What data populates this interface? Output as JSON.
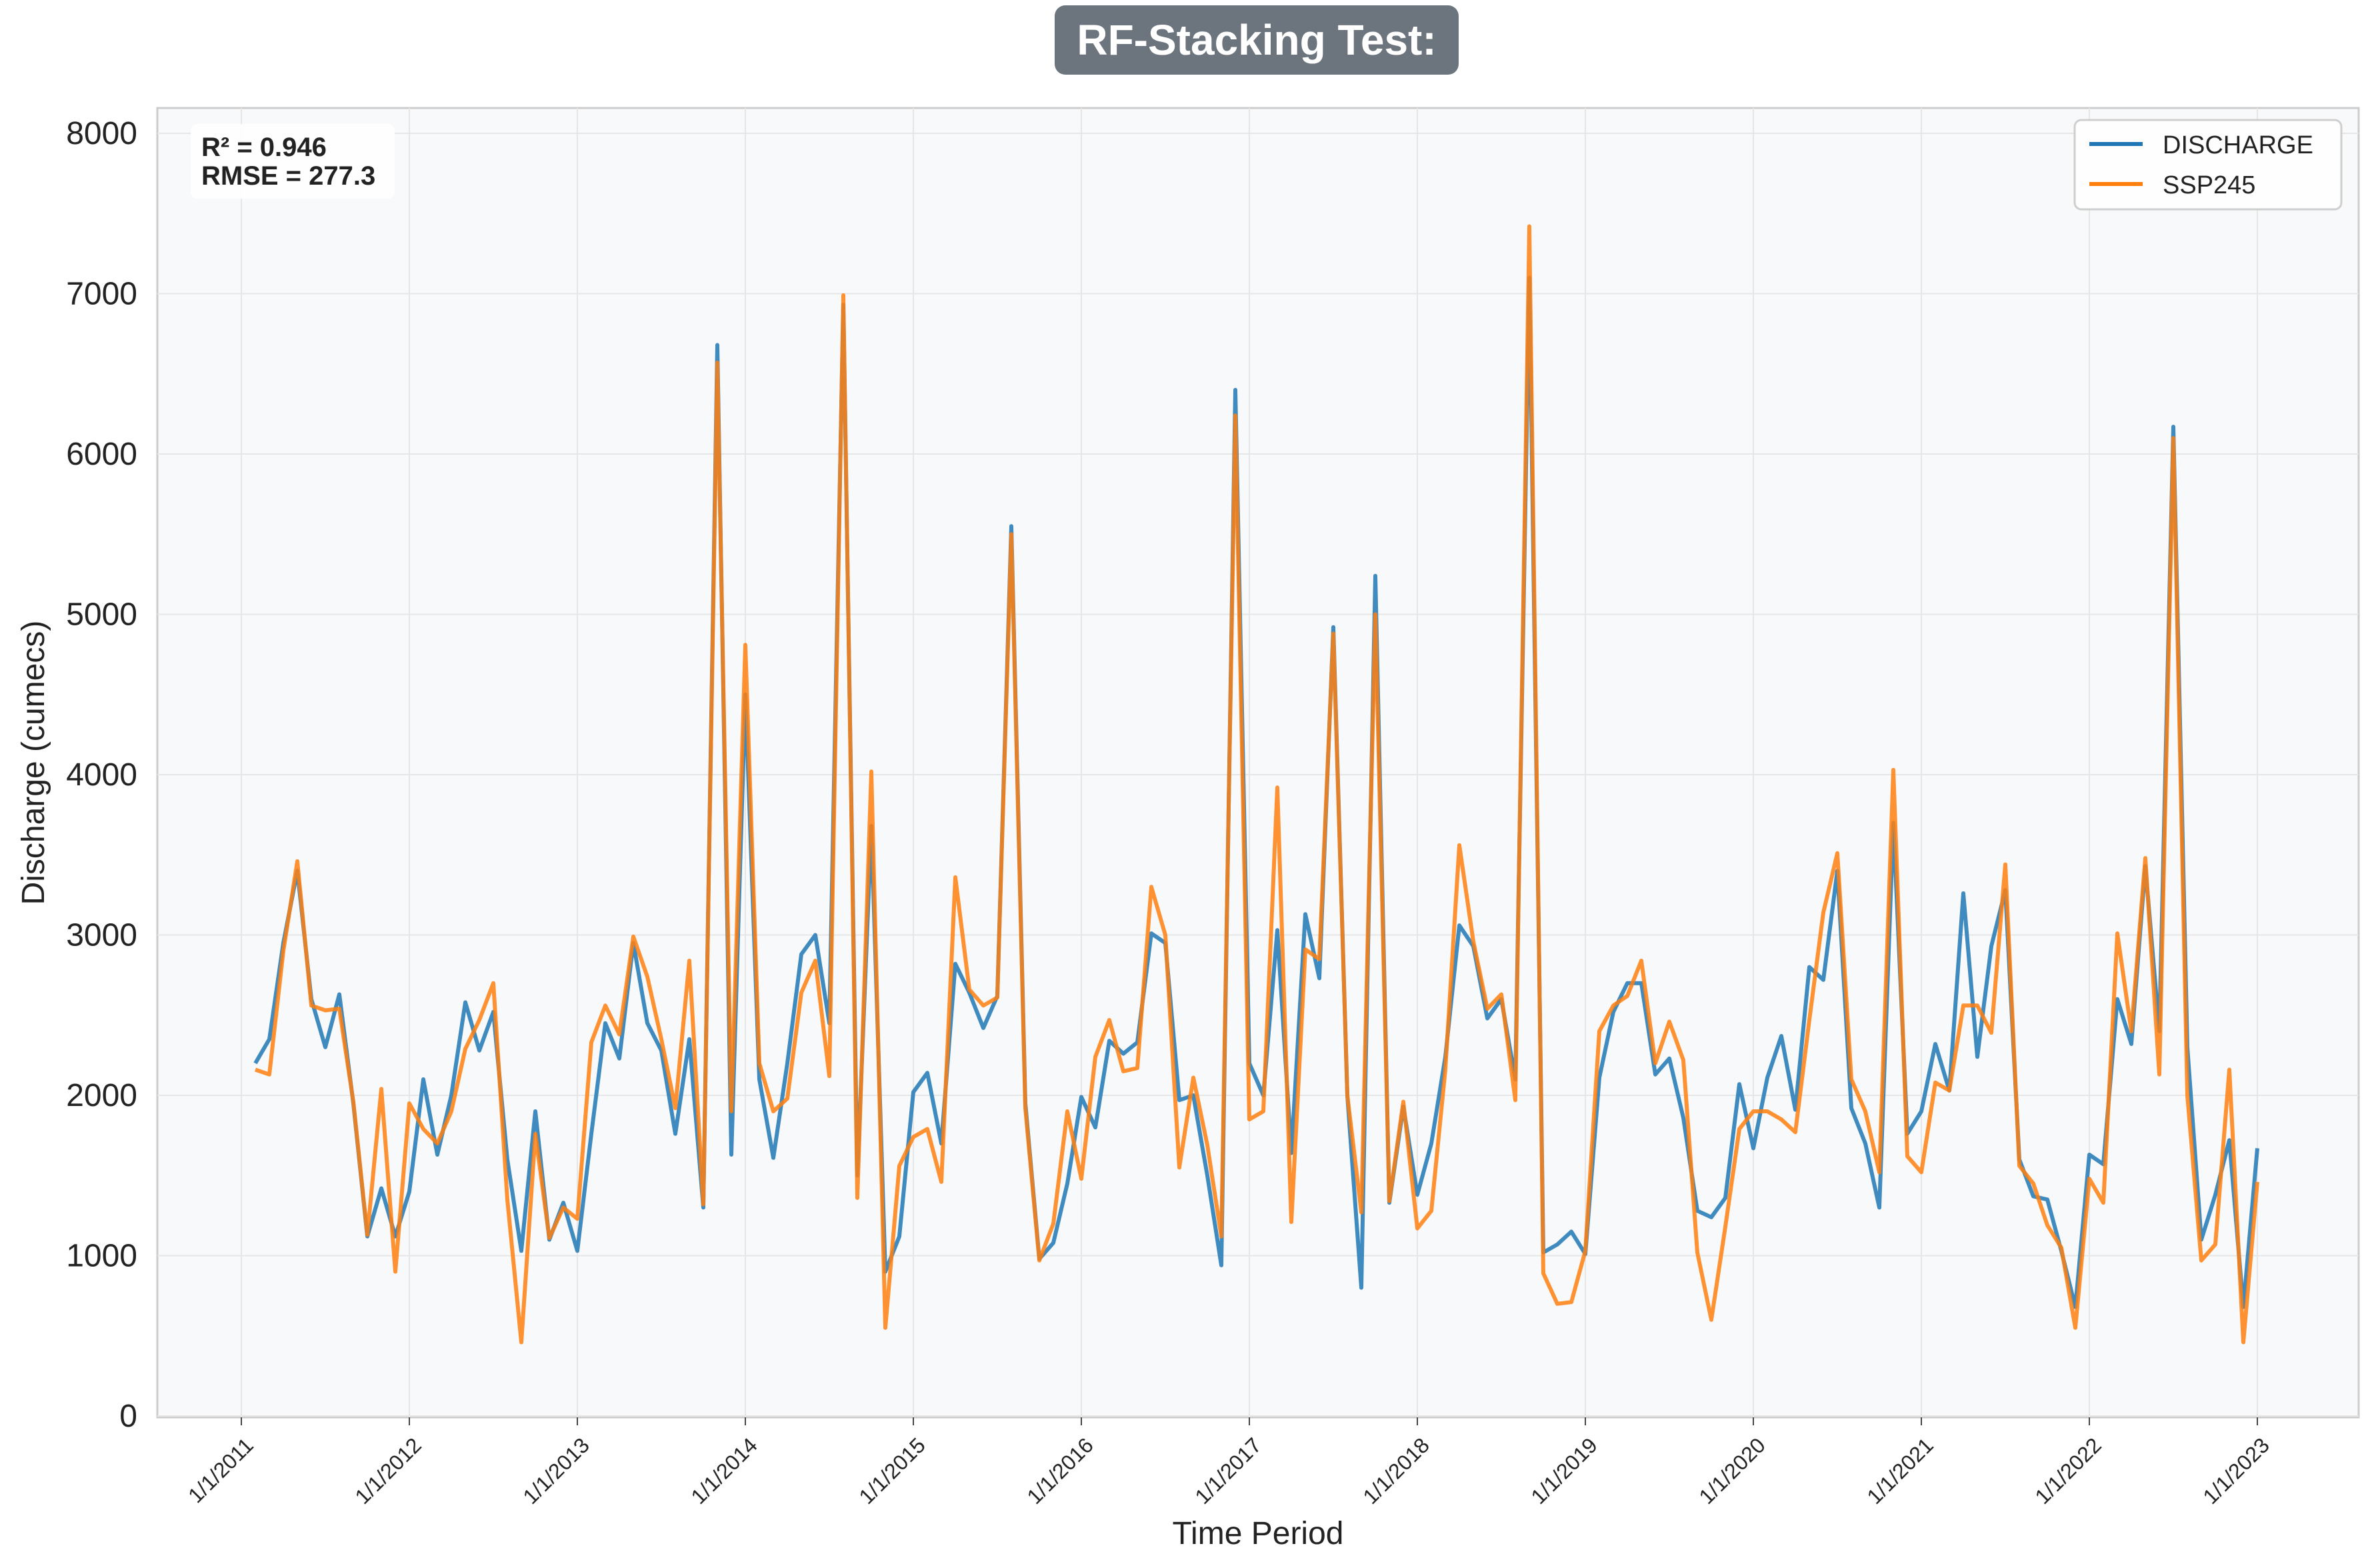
{
  "chart_data": {
    "type": "line",
    "title": "RF-Stacking Test:",
    "xlabel": "Time Period",
    "ylabel": "Discharge (cumecs)",
    "ylim": [
      0,
      8000
    ],
    "yticks": [
      0,
      1000,
      2000,
      3000,
      4000,
      5000,
      6000,
      7000,
      8000
    ],
    "xticks": [
      "1/1/2011",
      "1/1/2012",
      "1/1/2013",
      "1/1/2014",
      "1/1/2015",
      "1/1/2016",
      "1/1/2017",
      "1/1/2018",
      "1/1/2019",
      "1/1/2020",
      "1/1/2021",
      "1/1/2022",
      "1/1/2023"
    ],
    "x_start": "2011-02",
    "x_step": "1 month",
    "grid": true,
    "legend_position": "top-right",
    "annotation": {
      "r2": "R² = 0.946",
      "rmse": "RMSE = 277.3"
    },
    "series": [
      {
        "name": "DISCHARGE",
        "color": "#1f77b4",
        "values": [
          2200,
          2350,
          2950,
          3400,
          2600,
          2300,
          2630,
          1950,
          1120,
          1420,
          1120,
          1400,
          2100,
          1630,
          2000,
          2580,
          2280,
          2520,
          1600,
          1030,
          1900,
          1100,
          1330,
          1030,
          1760,
          2450,
          2230,
          2950,
          2450,
          2280,
          1760,
          2350,
          1300,
          6680,
          1630,
          4500,
          2100,
          1610,
          2200,
          2880,
          3000,
          2450,
          6930,
          1500,
          3680,
          900,
          1120,
          2020,
          2140,
          1700,
          2820,
          2640,
          2420,
          2620,
          5550,
          1950,
          980,
          1080,
          1450,
          1990,
          1800,
          2340,
          2260,
          2330,
          3010,
          2950,
          1970,
          2000,
          1500,
          940,
          6400,
          2200,
          2000,
          3030,
          1640,
          3130,
          2730,
          4920,
          2000,
          800,
          5240,
          1330,
          1930,
          1380,
          1700,
          2240,
          3060,
          2930,
          2480,
          2600,
          2100,
          7100,
          1020,
          1070,
          1150,
          1010,
          2110,
          2520,
          2700,
          2700,
          2130,
          2230,
          1860,
          1280,
          1240,
          1360,
          2070,
          1670,
          2110,
          2370,
          1910,
          2800,
          2720,
          3400,
          1920,
          1700,
          1300,
          3700,
          1760,
          1900,
          2320,
          2030,
          3260,
          2240,
          2930,
          3280,
          1600,
          1370,
          1350,
          1030,
          680,
          1630,
          1570,
          2600,
          2320,
          3430,
          2400,
          6170,
          2300,
          1100,
          1380,
          1720,
          680,
          1670
        ]
      },
      {
        "name": "SSP245",
        "color": "#ff7f0e",
        "values": [
          2160,
          2130,
          2900,
          3460,
          2560,
          2530,
          2540,
          1960,
          1130,
          2040,
          900,
          1950,
          1790,
          1700,
          1900,
          2290,
          2470,
          2700,
          1350,
          460,
          1760,
          1110,
          1300,
          1230,
          2330,
          2560,
          2380,
          2990,
          2740,
          2350,
          1920,
          2840,
          1320,
          6570,
          1900,
          4810,
          2200,
          1900,
          1980,
          2640,
          2840,
          2120,
          6990,
          1360,
          4020,
          550,
          1560,
          1740,
          1790,
          1460,
          3360,
          2660,
          2560,
          2610,
          5500,
          1920,
          970,
          1200,
          1900,
          1480,
          2240,
          2470,
          2150,
          2170,
          3300,
          3000,
          1550,
          2110,
          1690,
          1120,
          6240,
          1850,
          1900,
          3920,
          1210,
          2910,
          2850,
          4880,
          2000,
          1270,
          5000,
          1340,
          1960,
          1170,
          1280,
          2160,
          3560,
          2960,
          2540,
          2630,
          1970,
          7420,
          890,
          700,
          710,
          1030,
          2400,
          2560,
          2620,
          2840,
          2200,
          2460,
          2220,
          1020,
          600,
          1180,
          1790,
          1900,
          1900,
          1850,
          1770,
          2470,
          3140,
          3510,
          2100,
          1900,
          1520,
          4030,
          1620,
          1520,
          2080,
          2030,
          2560,
          2560,
          2390,
          3440,
          1560,
          1450,
          1190,
          1050,
          550,
          1480,
          1330,
          3010,
          2400,
          3480,
          2130,
          6100,
          2000,
          970,
          1070,
          2160,
          460,
          1460
        ]
      }
    ]
  }
}
